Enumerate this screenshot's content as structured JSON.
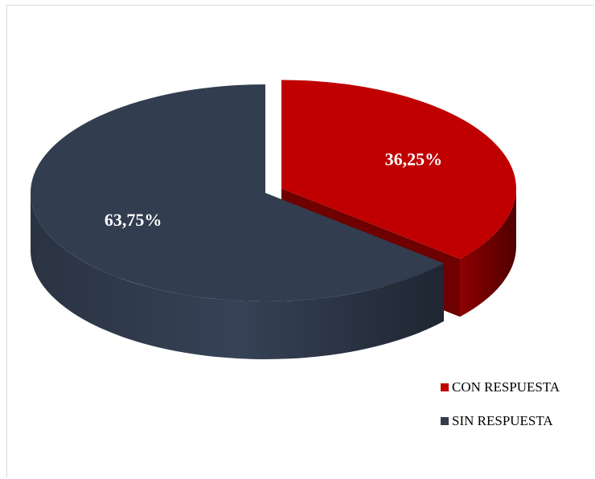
{
  "chart_data": {
    "type": "pie",
    "title": "",
    "categories": [
      "CON RESPUESTA",
      "SIN RESPUESTA"
    ],
    "values": [
      36.25,
      63.75
    ],
    "labels": [
      "36,25%",
      "63,75%"
    ],
    "colors": {
      "CON RESPUESTA": "#c00000",
      "SIN RESPUESTA": "#323d4f"
    },
    "style": "3d-exploded",
    "legend_position": "bottom-right"
  }
}
